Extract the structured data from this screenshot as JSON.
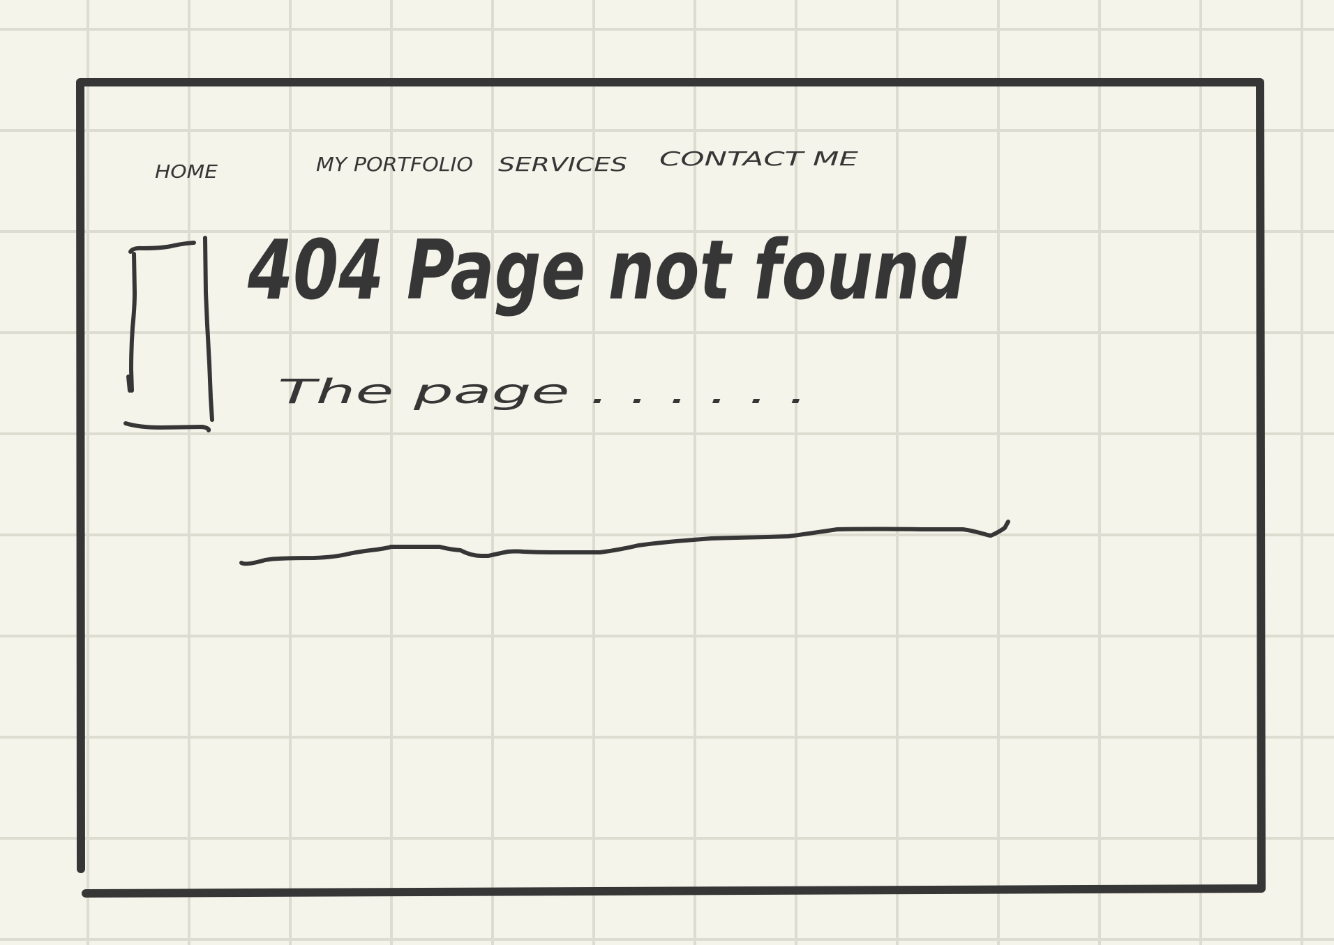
{
  "nav": {
    "items": [
      {
        "label": "HOME"
      },
      {
        "label": "MY PORTFOLIO"
      },
      {
        "label": "SERVICES"
      },
      {
        "label": "CONTACT ME"
      }
    ]
  },
  "error": {
    "title": "404 Page not found",
    "message": "The page . . . . . ."
  },
  "colors": {
    "ink": "#363636",
    "paper": "#f4f4ea",
    "grid": "#dcdcd0"
  },
  "icons": {
    "image_placeholder": "bracket-rectangle"
  }
}
